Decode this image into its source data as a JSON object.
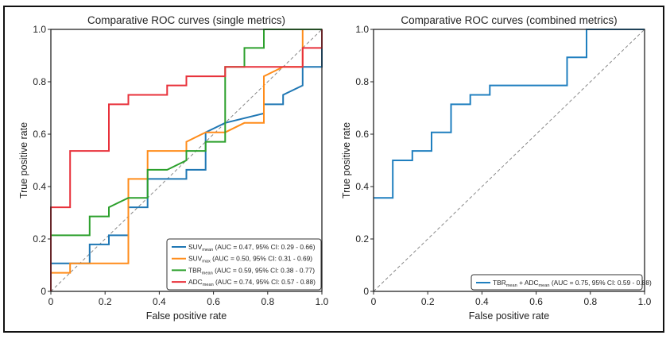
{
  "chart_data": [
    {
      "type": "line",
      "title": "Comparative ROC curves (single metrics)",
      "xlabel": "False positive rate",
      "ylabel": "True positive rate",
      "xlim": [
        0,
        1
      ],
      "ylim": [
        0,
        1
      ],
      "xticks": [
        "0",
        "0.2",
        "0.4",
        "0.6",
        "0.8",
        "1.0"
      ],
      "yticks": [
        "0",
        "0.2",
        "0.4",
        "0.6",
        "0.8",
        "1.0"
      ],
      "grid": false,
      "legend_position": "bottom-right",
      "reference_line": "diagonal",
      "series": [
        {
          "name": "SUVmean",
          "label_main": "SUV",
          "label_sub": "mean",
          "label_rest": " (AUC = 0.47, 95% CI: 0.29 - 0.66)",
          "color": "#1f77b4",
          "x": [
            0,
            0,
            0.143,
            0.143,
            0.214,
            0.214,
            0.286,
            0.286,
            0.357,
            0.357,
            0.5,
            0.5,
            0.571,
            0.571,
            0.643,
            0.786,
            0.786,
            0.857,
            0.857,
            0.929,
            0.929,
            1,
            1
          ],
          "y": [
            0,
            0.107,
            0.107,
            0.179,
            0.179,
            0.214,
            0.214,
            0.321,
            0.321,
            0.429,
            0.429,
            0.464,
            0.464,
            0.607,
            0.643,
            0.679,
            0.714,
            0.714,
            0.75,
            0.786,
            0.857,
            0.857,
            1
          ]
        },
        {
          "name": "SUVmax",
          "label_main": "SUV",
          "label_sub": "max",
          "label_rest": " (AUC = 0.50, 95% CI: 0.31 - 0.69)",
          "color": "#ff8c1a",
          "x": [
            0,
            0,
            0.071,
            0.071,
            0.286,
            0.286,
            0.357,
            0.357,
            0.5,
            0.5,
            0.571,
            0.643,
            0.714,
            0.786,
            0.786,
            0.857,
            0.929,
            0.929,
            1
          ],
          "y": [
            0,
            0.071,
            0.071,
            0.107,
            0.107,
            0.429,
            0.429,
            0.536,
            0.536,
            0.571,
            0.607,
            0.607,
            0.643,
            0.643,
            0.821,
            0.857,
            0.857,
            1,
            1
          ]
        },
        {
          "name": "TBRmean",
          "label_main": "TBR",
          "label_sub": "mean",
          "label_rest": " (AUC = 0.59, 95% CI: 0.38 - 0.77)",
          "color": "#2ca02c",
          "x": [
            0,
            0,
            0.143,
            0.143,
            0.214,
            0.214,
            0.286,
            0.357,
            0.357,
            0.429,
            0.5,
            0.5,
            0.571,
            0.571,
            0.643,
            0.643,
            0.714,
            0.714,
            0.786,
            0.786,
            1
          ],
          "y": [
            0,
            0.214,
            0.214,
            0.286,
            0.286,
            0.321,
            0.357,
            0.357,
            0.464,
            0.464,
            0.5,
            0.536,
            0.536,
            0.571,
            0.571,
            0.857,
            0.857,
            0.929,
            0.929,
            1,
            1
          ]
        },
        {
          "name": "ADCmean",
          "label_main": "ADC",
          "label_sub": "mean",
          "label_rest": " (AUC = 0.74, 95% CI: 0.57 - 0.88)",
          "color": "#e8303a",
          "x": [
            0,
            0,
            0.071,
            0.071,
            0.214,
            0.214,
            0.286,
            0.286,
            0.429,
            0.429,
            0.5,
            0.5,
            0.643,
            0.643,
            0.929,
            0.929,
            1,
            1
          ],
          "y": [
            0,
            0.321,
            0.321,
            0.536,
            0.536,
            0.714,
            0.714,
            0.75,
            0.75,
            0.786,
            0.786,
            0.821,
            0.821,
            0.857,
            0.857,
            0.929,
            0.929,
            1
          ]
        }
      ]
    },
    {
      "type": "line",
      "title": "Comparative ROC curves (combined metrics)",
      "xlabel": "False positive rate",
      "ylabel": "True positive rate",
      "xlim": [
        0,
        1
      ],
      "ylim": [
        0,
        1
      ],
      "xticks": [
        "0",
        "0.2",
        "0.4",
        "0.6",
        "0.8",
        "1.0"
      ],
      "yticks": [
        "0",
        "0.2",
        "0.4",
        "0.6",
        "0.8",
        "1.0"
      ],
      "grid": false,
      "legend_position": "bottom-right",
      "reference_line": "diagonal",
      "series": [
        {
          "name": "TBRmean + ADCmean",
          "label_parts": [
            {
              "text": "TBR",
              "sub": false
            },
            {
              "text": "mean",
              "sub": true
            },
            {
              "text": " + ADC",
              "sub": false
            },
            {
              "text": "mean",
              "sub": true
            },
            {
              "text": " (AUC = 0.75, 95% CI: 0.59 - 0.88)",
              "sub": false
            }
          ],
          "color": "#1f7fbf",
          "x": [
            0,
            0.071,
            0.071,
            0.143,
            0.143,
            0.214,
            0.214,
            0.286,
            0.286,
            0.357,
            0.357,
            0.429,
            0.429,
            0.714,
            0.714,
            0.786,
            0.786,
            1
          ],
          "y": [
            0.357,
            0.357,
            0.5,
            0.5,
            0.536,
            0.536,
            0.607,
            0.607,
            0.714,
            0.714,
            0.75,
            0.75,
            0.786,
            0.786,
            0.893,
            0.893,
            1,
            1
          ]
        }
      ]
    }
  ]
}
